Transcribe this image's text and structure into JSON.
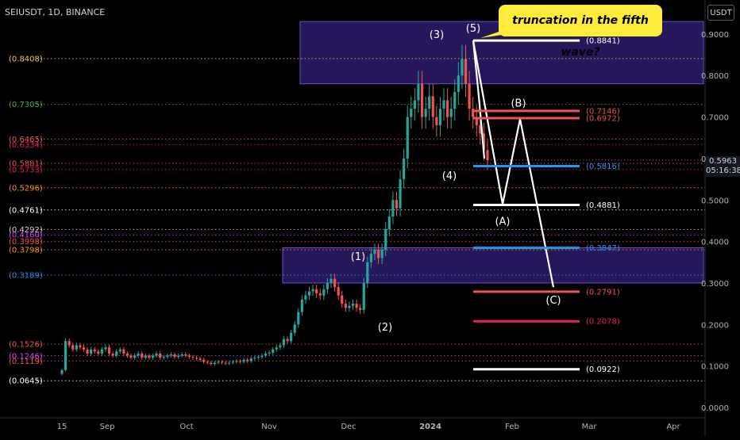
{
  "header": {
    "symbol": "SEIUSDT, 1D, BINANCE",
    "currency_badge": "USDT"
  },
  "annotation": {
    "callout": "truncation in the fifth wave?"
  },
  "last_price": {
    "value": "0.5963",
    "countdown": "05:16:38"
  },
  "colors": {
    "background": "#000000",
    "up": "#26a69a",
    "down": "#ef5350",
    "callout": "#ffeb3b",
    "zone": "#2a1a6e"
  },
  "chart_data": {
    "type": "candlestick",
    "y_axis": {
      "position": "right",
      "ticks": [
        "0.9000",
        "0.8000",
        "0.7000",
        "0.6000",
        "0.5000",
        "0.4000",
        "0.3000",
        "0.2000",
        "0.1000",
        "0.0000"
      ],
      "range": [
        0,
        0.93
      ]
    },
    "x_axis": {
      "ticks": [
        "15",
        "Sep",
        "Oct",
        "Nov",
        "Dec",
        "2024",
        "Feb",
        "Mar",
        "Apr"
      ]
    },
    "candles_close": [
      0.09,
      0.16,
      0.15,
      0.14,
      0.15,
      0.145,
      0.14,
      0.13,
      0.14,
      0.135,
      0.13,
      0.14,
      0.145,
      0.13,
      0.125,
      0.135,
      0.14,
      0.13,
      0.125,
      0.12,
      0.125,
      0.13,
      0.12,
      0.125,
      0.12,
      0.125,
      0.13,
      0.12,
      0.122,
      0.125,
      0.128,
      0.122,
      0.125,
      0.128,
      0.125,
      0.122,
      0.12,
      0.118,
      0.115,
      0.11,
      0.108,
      0.105,
      0.108,
      0.11,
      0.108,
      0.106,
      0.108,
      0.11,
      0.112,
      0.11,
      0.115,
      0.112,
      0.118,
      0.12,
      0.122,
      0.125,
      0.13,
      0.132,
      0.14,
      0.145,
      0.15,
      0.165,
      0.16,
      0.18,
      0.2,
      0.23,
      0.26,
      0.27,
      0.28,
      0.285,
      0.275,
      0.27,
      0.285,
      0.3,
      0.31,
      0.29,
      0.27,
      0.25,
      0.24,
      0.245,
      0.25,
      0.24,
      0.235,
      0.3,
      0.35,
      0.37,
      0.38,
      0.36,
      0.38,
      0.43,
      0.46,
      0.5,
      0.48,
      0.55,
      0.6,
      0.7,
      0.72,
      0.74,
      0.78,
      0.7,
      0.72,
      0.75,
      0.7,
      0.68,
      0.72,
      0.74,
      0.7,
      0.72,
      0.76,
      0.8,
      0.84,
      0.78,
      0.72,
      0.7,
      0.68,
      0.66,
      0.62,
      0.596
    ],
    "fib_levels_left": [
      {
        "label": "(0.8408)",
        "value": 0.8408,
        "color": "#f7c948"
      },
      {
        "label": "(0.7305)",
        "value": 0.7305,
        "color": "#4caf50"
      },
      {
        "label": "(0.6465)",
        "value": 0.6465,
        "color": "#ef5350"
      },
      {
        "label": "(0.6334)",
        "value": 0.6334,
        "color": "#e91e63"
      },
      {
        "label": "(0.5881)",
        "value": 0.5881,
        "color": "#ef5350"
      },
      {
        "label": "(0.5733)",
        "value": 0.5733,
        "color": "#e91e63"
      },
      {
        "label": "(0.5296)",
        "value": 0.5296,
        "color": "#ff9800"
      },
      {
        "label": "(0.4761)",
        "value": 0.4761,
        "color": "#ffffff"
      },
      {
        "label": "(0.4292)",
        "value": 0.4292,
        "color": "#d1d4dc"
      },
      {
        "label": "(0.4160)",
        "value": 0.416,
        "color": "#e040fb"
      },
      {
        "label": "(0.3998)",
        "value": 0.3998,
        "color": "#ef5350"
      },
      {
        "label": "(0.3798)",
        "value": 0.3798,
        "color": "#ff9800"
      },
      {
        "label": "(0.3189)",
        "value": 0.3189,
        "color": "#2196f3"
      },
      {
        "label": "(0.1526)",
        "value": 0.1526,
        "color": "#ef5350"
      },
      {
        "label": "(0.1246)",
        "value": 0.1246,
        "color": "#e040fb"
      },
      {
        "label": "(0.1119)",
        "value": 0.1119,
        "color": "#ef5350"
      },
      {
        "label": "(0.0645)",
        "value": 0.0645,
        "color": "#ffffff"
      }
    ],
    "target_levels": [
      {
        "label": "(0.8841)",
        "value": 0.8841,
        "color": "#ffffff"
      },
      {
        "label": "(0.7146)",
        "value": 0.7146,
        "color": "#ef5350"
      },
      {
        "label": "(0.6972)",
        "value": 0.6972,
        "color": "#ef5350"
      },
      {
        "label": "(0.5816)",
        "value": 0.5816,
        "color": "#2196f3"
      },
      {
        "label": "(0.4881)",
        "value": 0.4881,
        "color": "#ffffff"
      },
      {
        "label": "(0.3847)",
        "value": 0.3847,
        "color": "#2196f3"
      },
      {
        "label": "(0.2791)",
        "value": 0.2791,
        "color": "#ef5350"
      },
      {
        "label": "(0.2078)",
        "value": 0.2078,
        "color": "#e91e63"
      },
      {
        "label": "(0.0922)",
        "value": 0.0922,
        "color": "#ffffff"
      }
    ],
    "wave_labels": [
      "(1)",
      "(2)",
      "(3)",
      "(4)",
      "(5)",
      "(A)",
      "(B)",
      "(C)"
    ],
    "zones": [
      {
        "from": 0.78,
        "to": 0.93
      },
      {
        "from": 0.3,
        "to": 0.385
      }
    ]
  }
}
